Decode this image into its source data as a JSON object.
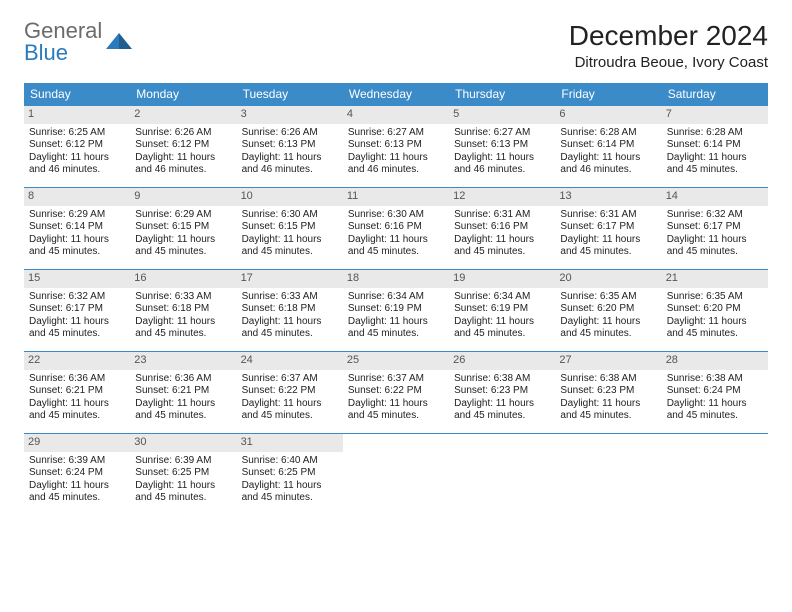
{
  "logo": {
    "line1": "General",
    "line2": "Blue"
  },
  "title": "December 2024",
  "location": "Ditroudra Beoue, Ivory Coast",
  "colors": {
    "header_bg": "#3b8bc9",
    "header_text": "#ffffff",
    "daynum_bg": "#e9e9e9",
    "border": "#3b8bc9",
    "logo_gray": "#6b6b6b",
    "logo_blue": "#2a7bbd"
  },
  "weekdays": [
    "Sunday",
    "Monday",
    "Tuesday",
    "Wednesday",
    "Thursday",
    "Friday",
    "Saturday"
  ],
  "labels": {
    "sunrise": "Sunrise:",
    "sunset": "Sunset:",
    "daylight": "Daylight:"
  },
  "days": [
    {
      "n": 1,
      "sunrise": "6:25 AM",
      "sunset": "6:12 PM",
      "daylight": "11 hours and 46 minutes."
    },
    {
      "n": 2,
      "sunrise": "6:26 AM",
      "sunset": "6:12 PM",
      "daylight": "11 hours and 46 minutes."
    },
    {
      "n": 3,
      "sunrise": "6:26 AM",
      "sunset": "6:13 PM",
      "daylight": "11 hours and 46 minutes."
    },
    {
      "n": 4,
      "sunrise": "6:27 AM",
      "sunset": "6:13 PM",
      "daylight": "11 hours and 46 minutes."
    },
    {
      "n": 5,
      "sunrise": "6:27 AM",
      "sunset": "6:13 PM",
      "daylight": "11 hours and 46 minutes."
    },
    {
      "n": 6,
      "sunrise": "6:28 AM",
      "sunset": "6:14 PM",
      "daylight": "11 hours and 46 minutes."
    },
    {
      "n": 7,
      "sunrise": "6:28 AM",
      "sunset": "6:14 PM",
      "daylight": "11 hours and 45 minutes."
    },
    {
      "n": 8,
      "sunrise": "6:29 AM",
      "sunset": "6:14 PM",
      "daylight": "11 hours and 45 minutes."
    },
    {
      "n": 9,
      "sunrise": "6:29 AM",
      "sunset": "6:15 PM",
      "daylight": "11 hours and 45 minutes."
    },
    {
      "n": 10,
      "sunrise": "6:30 AM",
      "sunset": "6:15 PM",
      "daylight": "11 hours and 45 minutes."
    },
    {
      "n": 11,
      "sunrise": "6:30 AM",
      "sunset": "6:16 PM",
      "daylight": "11 hours and 45 minutes."
    },
    {
      "n": 12,
      "sunrise": "6:31 AM",
      "sunset": "6:16 PM",
      "daylight": "11 hours and 45 minutes."
    },
    {
      "n": 13,
      "sunrise": "6:31 AM",
      "sunset": "6:17 PM",
      "daylight": "11 hours and 45 minutes."
    },
    {
      "n": 14,
      "sunrise": "6:32 AM",
      "sunset": "6:17 PM",
      "daylight": "11 hours and 45 minutes."
    },
    {
      "n": 15,
      "sunrise": "6:32 AM",
      "sunset": "6:17 PM",
      "daylight": "11 hours and 45 minutes."
    },
    {
      "n": 16,
      "sunrise": "6:33 AM",
      "sunset": "6:18 PM",
      "daylight": "11 hours and 45 minutes."
    },
    {
      "n": 17,
      "sunrise": "6:33 AM",
      "sunset": "6:18 PM",
      "daylight": "11 hours and 45 minutes."
    },
    {
      "n": 18,
      "sunrise": "6:34 AM",
      "sunset": "6:19 PM",
      "daylight": "11 hours and 45 minutes."
    },
    {
      "n": 19,
      "sunrise": "6:34 AM",
      "sunset": "6:19 PM",
      "daylight": "11 hours and 45 minutes."
    },
    {
      "n": 20,
      "sunrise": "6:35 AM",
      "sunset": "6:20 PM",
      "daylight": "11 hours and 45 minutes."
    },
    {
      "n": 21,
      "sunrise": "6:35 AM",
      "sunset": "6:20 PM",
      "daylight": "11 hours and 45 minutes."
    },
    {
      "n": 22,
      "sunrise": "6:36 AM",
      "sunset": "6:21 PM",
      "daylight": "11 hours and 45 minutes."
    },
    {
      "n": 23,
      "sunrise": "6:36 AM",
      "sunset": "6:21 PM",
      "daylight": "11 hours and 45 minutes."
    },
    {
      "n": 24,
      "sunrise": "6:37 AM",
      "sunset": "6:22 PM",
      "daylight": "11 hours and 45 minutes."
    },
    {
      "n": 25,
      "sunrise": "6:37 AM",
      "sunset": "6:22 PM",
      "daylight": "11 hours and 45 minutes."
    },
    {
      "n": 26,
      "sunrise": "6:38 AM",
      "sunset": "6:23 PM",
      "daylight": "11 hours and 45 minutes."
    },
    {
      "n": 27,
      "sunrise": "6:38 AM",
      "sunset": "6:23 PM",
      "daylight": "11 hours and 45 minutes."
    },
    {
      "n": 28,
      "sunrise": "6:38 AM",
      "sunset": "6:24 PM",
      "daylight": "11 hours and 45 minutes."
    },
    {
      "n": 29,
      "sunrise": "6:39 AM",
      "sunset": "6:24 PM",
      "daylight": "11 hours and 45 minutes."
    },
    {
      "n": 30,
      "sunrise": "6:39 AM",
      "sunset": "6:25 PM",
      "daylight": "11 hours and 45 minutes."
    },
    {
      "n": 31,
      "sunrise": "6:40 AM",
      "sunset": "6:25 PM",
      "daylight": "11 hours and 45 minutes."
    }
  ],
  "first_weekday_index": 0,
  "rows": 5
}
